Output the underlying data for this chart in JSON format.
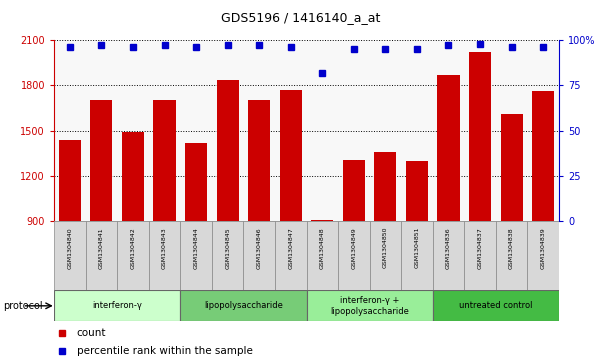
{
  "title": "GDS5196 / 1416140_a_at",
  "samples": [
    "GSM1304840",
    "GSM1304841",
    "GSM1304842",
    "GSM1304843",
    "GSM1304844",
    "GSM1304845",
    "GSM1304846",
    "GSM1304847",
    "GSM1304848",
    "GSM1304849",
    "GSM1304850",
    "GSM1304851",
    "GSM1304836",
    "GSM1304837",
    "GSM1304838",
    "GSM1304839"
  ],
  "counts": [
    1440,
    1700,
    1490,
    1700,
    1420,
    1835,
    1700,
    1770,
    910,
    1305,
    1360,
    1300,
    1870,
    2020,
    1610,
    1760
  ],
  "percentile_ranks": [
    96,
    97,
    96,
    97,
    96,
    97,
    97,
    96,
    82,
    95,
    95,
    95,
    97,
    98,
    96,
    96
  ],
  "bar_color": "#cc0000",
  "dot_color": "#0000cc",
  "ylim_left": [
    900,
    2100
  ],
  "ylim_right": [
    0,
    100
  ],
  "yticks_left": [
    900,
    1200,
    1500,
    1800,
    2100
  ],
  "yticks_right": [
    0,
    25,
    50,
    75,
    100
  ],
  "ytick_labels_right": [
    "0",
    "25",
    "50",
    "75",
    "100%"
  ],
  "groups": [
    {
      "label": "interferon-γ",
      "start": 0,
      "end": 4,
      "color": "#ccffcc"
    },
    {
      "label": "lipopolysaccharide",
      "start": 4,
      "end": 8,
      "color": "#77cc77"
    },
    {
      "label": "interferon-γ +\nlipopolysaccharide",
      "start": 8,
      "end": 12,
      "color": "#99ee99"
    },
    {
      "label": "untreated control",
      "start": 12,
      "end": 16,
      "color": "#44bb44"
    }
  ],
  "protocol_label": "protocol",
  "legend_count_label": "count",
  "legend_pct_label": "percentile rank within the sample",
  "bar_bg_color": "#dddddd",
  "tick_color_left": "#cc0000",
  "tick_color_right": "#0000cc"
}
